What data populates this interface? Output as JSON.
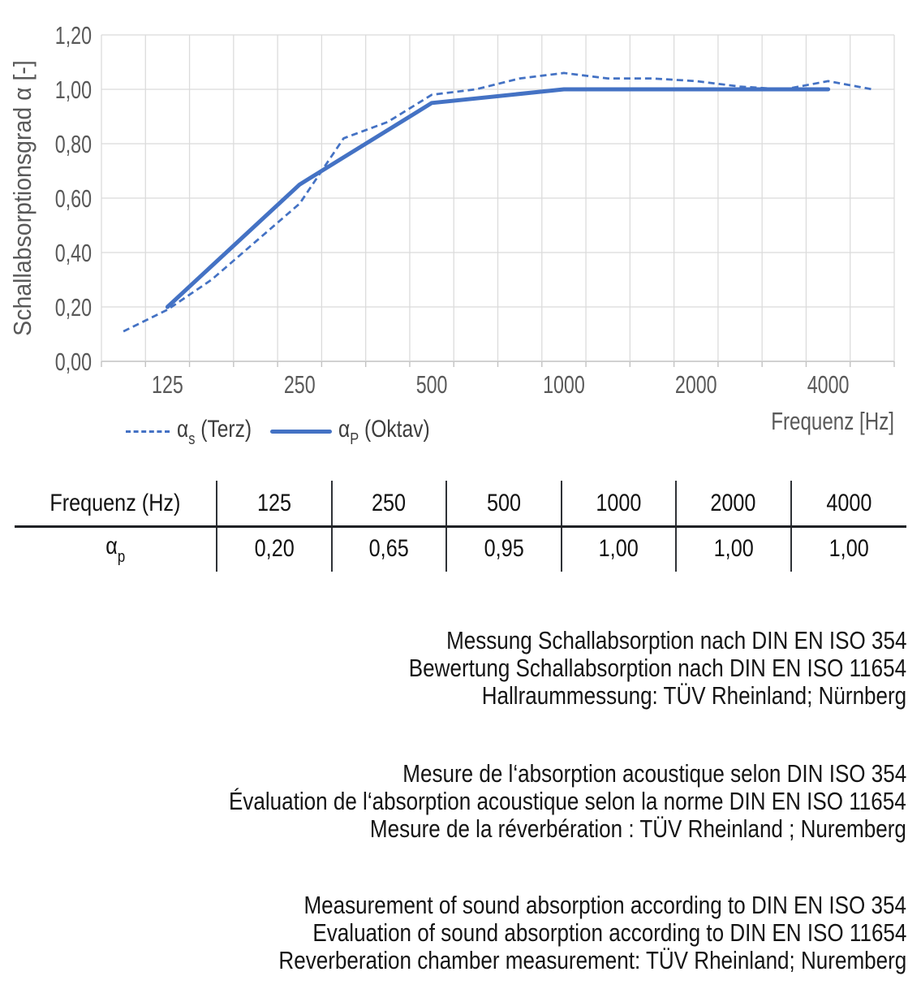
{
  "chart": {
    "y_axis_title": "Schallabsorptionsgrad α [-]",
    "x_axis_title": "Frequenz [Hz]",
    "y_ticks": [
      "1,20",
      "1,00",
      "0,80",
      "0,60",
      "0,40",
      "0,20",
      "0,00"
    ],
    "x_tick_labels": [
      "125",
      "250",
      "500",
      "1000",
      "2000",
      "4000"
    ],
    "legend": [
      {
        "alpha": "α",
        "sub": "s",
        "rest": " (Terz)"
      },
      {
        "alpha": "α",
        "sub": "P",
        "rest": " (Oktav)"
      }
    ],
    "colors": {
      "line": "#4472C4",
      "grid": "#DBDBDB",
      "axis_line": "#C2C2C2",
      "axis_text": "#595959"
    }
  },
  "chart_data": {
    "type": "line",
    "x_scale": "third-octave categories (log-spaced)",
    "categories": [
      100,
      125,
      160,
      200,
      250,
      315,
      400,
      500,
      630,
      800,
      1000,
      1250,
      1600,
      2000,
      2500,
      3150,
      4000,
      5000
    ],
    "series": [
      {
        "name": "αs (Terz)",
        "style": "dashed",
        "values": [
          0.11,
          0.19,
          0.3,
          0.44,
          0.58,
          0.82,
          0.88,
          0.98,
          1.0,
          1.04,
          1.06,
          1.04,
          1.04,
          1.03,
          1.01,
          1.0,
          1.03,
          1.0
        ]
      },
      {
        "name": "αP (Oktav)",
        "style": "solid",
        "categories": [
          125,
          250,
          500,
          1000,
          2000,
          4000
        ],
        "values": [
          0.2,
          0.65,
          0.95,
          1.0,
          1.0,
          1.0
        ]
      }
    ],
    "title": "",
    "xlabel": "Frequenz [Hz]",
    "ylabel": "Schallabsorptionsgrad α [-]",
    "ylim": [
      0,
      1.2
    ],
    "grid": true,
    "legend_position": "bottom-left"
  },
  "table": {
    "header": [
      "Frequenz (Hz)",
      "125",
      "250",
      "500",
      "1000",
      "2000",
      "4000"
    ],
    "row_label_alpha": "α",
    "row_label_sub": "p",
    "values": [
      "0,20",
      "0,65",
      "0,95",
      "1,00",
      "1,00",
      "1,00"
    ]
  },
  "notes": {
    "german": [
      "Messung Schallabsorption nach DIN EN ISO 354",
      "Bewertung Schallabsorption nach DIN EN ISO 11654",
      "Hallraummessung: TÜV Rheinland; Nürnberg"
    ],
    "french": [
      "Mesure de l‘absorption acoustique selon DIN ISO 354",
      "Évaluation de l‘absorption acoustique selon la norme DIN EN ISO 11654",
      "Mesure de la réverbération : TÜV Rheinland ; Nuremberg"
    ],
    "english": [
      "Measurement of sound absorption according to DIN EN ISO 354",
      "Evaluation of sound absorption according to DIN EN ISO 11654",
      "Reverberation chamber measurement: TÜV Rheinland; Nuremberg"
    ]
  }
}
